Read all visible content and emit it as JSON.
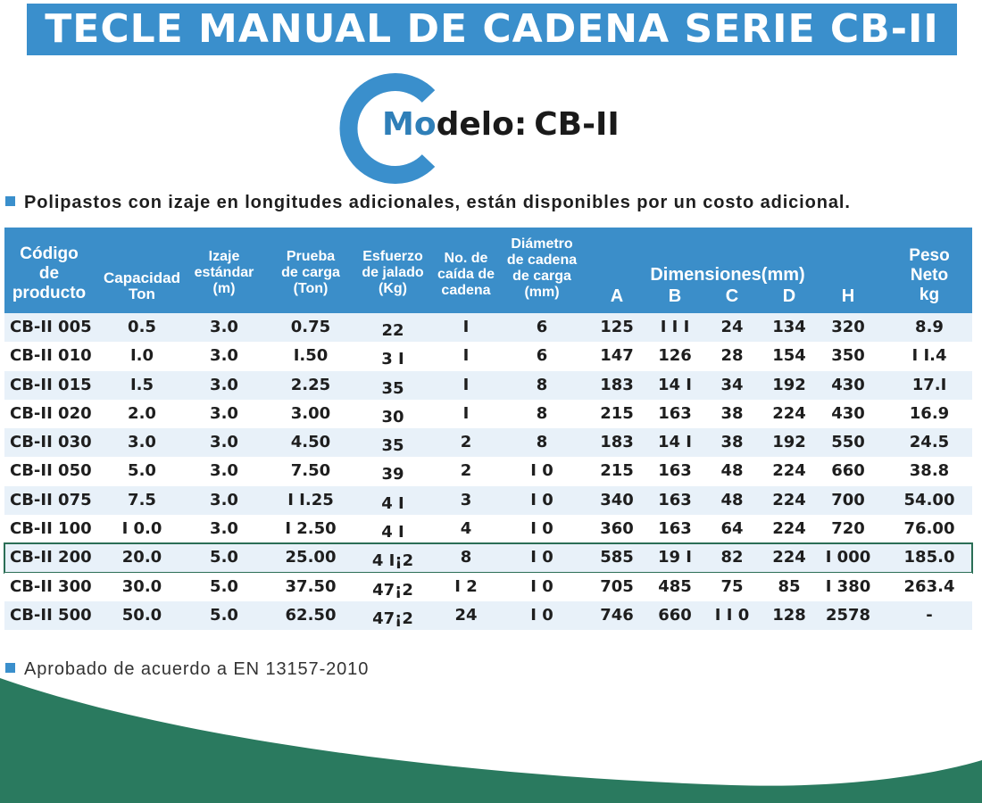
{
  "title": "TECLE MANUAL DE CADENA SERIE CB-II",
  "model": {
    "prefix_blue": "Mo",
    "prefix_dark": "delo:",
    "code": "CB-II"
  },
  "notes": {
    "top": "Polipastos con izaje en longitudes adicionales, están disponibles por un costo adicional.",
    "bottom": "Aprobado de acuerdo a EN 13157-2010"
  },
  "colors": {
    "title_bar": "#3a8fcc",
    "logo": "#3a8fcc",
    "header": "#3b8ec9",
    "stripe": "#e8f1f9",
    "highlight": "#2b6e56",
    "wave": "#2a7a5f"
  },
  "table": {
    "headers": {
      "code": [
        "Código",
        "de",
        "producto"
      ],
      "capacity": [
        "Capacidad",
        "Ton"
      ],
      "lift": [
        "Izaje",
        "estándar",
        "(m)"
      ],
      "test_load": [
        "Prueba",
        "de carga",
        "(Ton)"
      ],
      "pull": [
        "Esfuerzo",
        "de jalado",
        "(Kg)"
      ],
      "falls": [
        "No. de",
        "caída de",
        "cadena"
      ],
      "chain_dia": [
        "Diámetro",
        "de cadena",
        "de carga",
        "(mm)"
      ],
      "dimensions": "Dimensiones(mm)",
      "dim_letters": [
        "A",
        "B",
        "C",
        "D",
        "H"
      ],
      "weight": [
        "Peso",
        "Neto",
        "kg"
      ]
    },
    "rows": [
      {
        "code": "CB-II 005",
        "cap": "0.5",
        "lift": "3.0",
        "test": "0.75",
        "pull": "22",
        "falls": "I",
        "dia": "6",
        "A": "125",
        "B": "I I I",
        "C": "24",
        "D": "134",
        "H": "320",
        "w": "8.9"
      },
      {
        "code": "CB-II 010",
        "cap": "I.0",
        "lift": "3.0",
        "test": "I.50",
        "pull": "3 I",
        "falls": "I",
        "dia": "6",
        "A": "147",
        "B": "126",
        "C": "28",
        "D": "154",
        "H": "350",
        "w": "I I.4"
      },
      {
        "code": "CB-II 015",
        "cap": "I.5",
        "lift": "3.0",
        "test": "2.25",
        "pull": "35",
        "falls": "I",
        "dia": "8",
        "A": "183",
        "B": "14 I",
        "C": "34",
        "D": "192",
        "H": "430",
        "w": "17.I"
      },
      {
        "code": "CB-II 020",
        "cap": "2.0",
        "lift": "3.0",
        "test": "3.00",
        "pull": "30",
        "falls": "I",
        "dia": "8",
        "A": "215",
        "B": "163",
        "C": "38",
        "D": "224",
        "H": "430",
        "w": "16.9"
      },
      {
        "code": "CB-II 030",
        "cap": "3.0",
        "lift": "3.0",
        "test": "4.50",
        "pull": "35",
        "falls": "2",
        "dia": "8",
        "A": "183",
        "B": "14 I",
        "C": "38",
        "D": "192",
        "H": "550",
        "w": "24.5"
      },
      {
        "code": "CB-II 050",
        "cap": "5.0",
        "lift": "3.0",
        "test": "7.50",
        "pull": "39",
        "falls": "2",
        "dia": "I 0",
        "A": "215",
        "B": "163",
        "C": "48",
        "D": "224",
        "H": "660",
        "w": "38.8"
      },
      {
        "code": "CB-II 075",
        "cap": "7.5",
        "lift": "3.0",
        "test": "I I.25",
        "pull": "4 I",
        "falls": "3",
        "dia": "I 0",
        "A": "340",
        "B": "163",
        "C": "48",
        "D": "224",
        "H": "700",
        "w": "54.00"
      },
      {
        "code": "CB-II 100",
        "cap": "I 0.0",
        "lift": "3.0",
        "test": "I 2.50",
        "pull": "4 I",
        "falls": "4",
        "dia": "I 0",
        "A": "360",
        "B": "163",
        "C": "64",
        "D": "224",
        "H": "720",
        "w": "76.00"
      },
      {
        "code": "CB-II 200",
        "cap": "20.0",
        "lift": "5.0",
        "test": "25.00",
        "pull": "4 I¡2",
        "falls": "8",
        "dia": "I 0",
        "A": "585",
        "B": "19 I",
        "C": "82",
        "D": "224",
        "H": "I 000",
        "w": "185.0"
      },
      {
        "code": "CB-II 300",
        "cap": "30.0",
        "lift": "5.0",
        "test": "37.50",
        "pull": "47¡2",
        "falls": "I 2",
        "dia": "I 0",
        "A": "705",
        "B": "485",
        "C": "75",
        "D": "85",
        "H": "I 380",
        "w": "263.4"
      },
      {
        "code": "CB-II 500",
        "cap": "50.0",
        "lift": "5.0",
        "test": "62.50",
        "pull": "47¡2",
        "falls": "24",
        "dia": "I 0",
        "A": "746",
        "B": "660",
        "C": "I I 0",
        "D": "128",
        "H": "2578",
        "w": "-"
      }
    ]
  }
}
